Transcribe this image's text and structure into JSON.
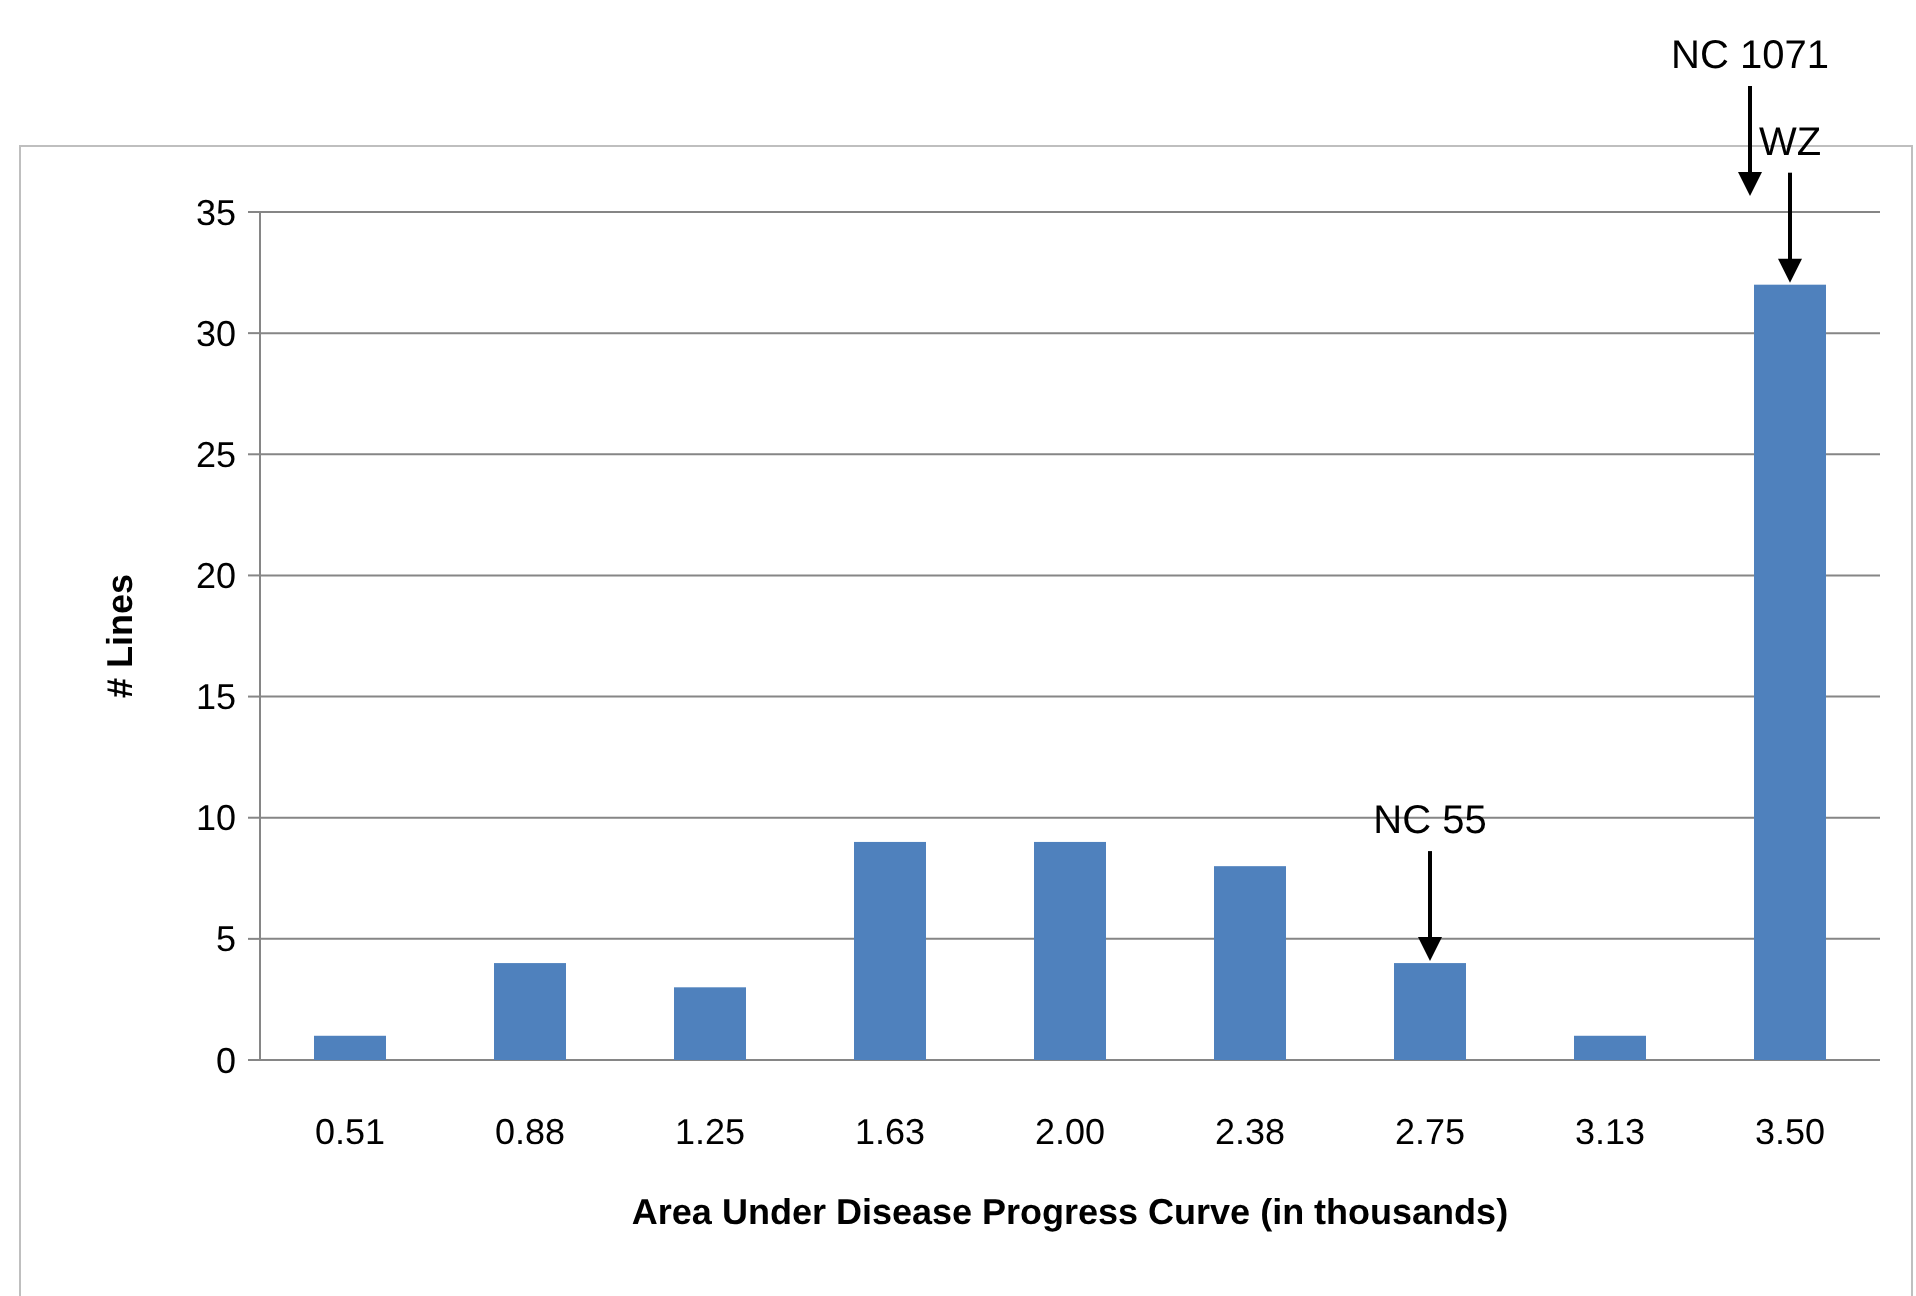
{
  "chart_data": {
    "type": "bar",
    "xlabel": "Area Under Disease Progress Curve (in thousands)",
    "ylabel": "# Lines",
    "categories": [
      "0.51",
      "0.88",
      "1.25",
      "1.63",
      "2.00",
      "2.38",
      "2.75",
      "3.13",
      "3.50"
    ],
    "values": [
      1,
      4,
      3,
      9,
      9,
      8,
      4,
      1,
      32
    ],
    "color": "#4f81bd",
    "ylim": [
      0,
      35
    ],
    "yticks": [
      0,
      5,
      10,
      15,
      20,
      25,
      30,
      35
    ],
    "grid": "y",
    "annotations": [
      "NC 1071",
      {
        "text": "WZ",
        "x": "3.50",
        "y": 32
      },
      {
        "text": "NC 55",
        "x": "2.75",
        "y": 4
      }
    ]
  }
}
